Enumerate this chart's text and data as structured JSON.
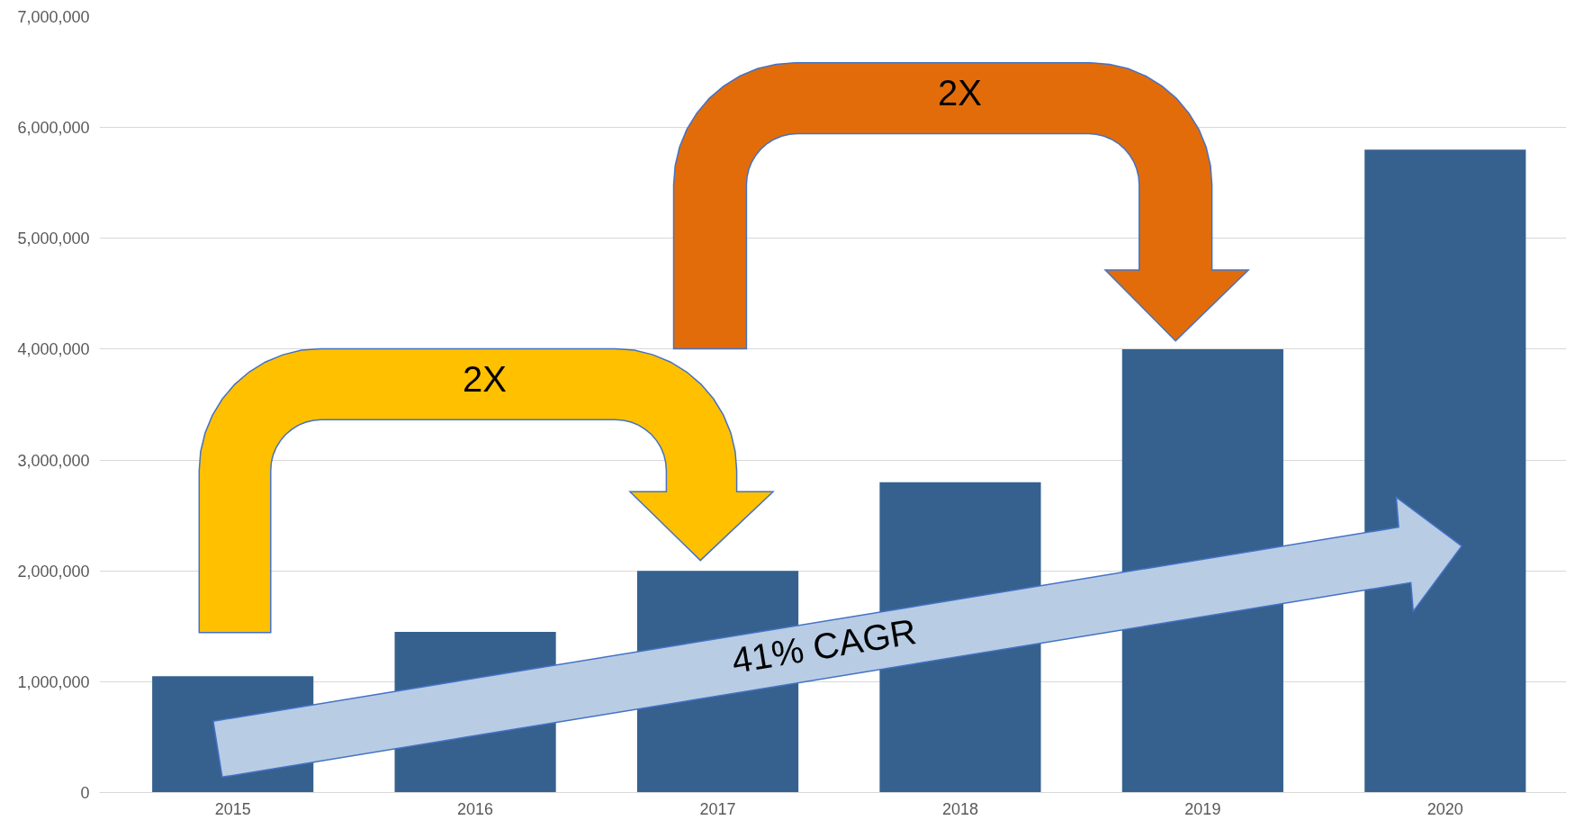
{
  "chart_data": {
    "type": "bar",
    "categories": [
      "2015",
      "2016",
      "2017",
      "2018",
      "2019",
      "2020"
    ],
    "values": [
      1050000,
      1450000,
      2000000,
      2800000,
      4000000,
      5800000
    ],
    "color": "#36618f",
    "ylim": [
      0,
      7000000
    ],
    "yticks": [
      {
        "value": 0,
        "label": "0"
      },
      {
        "value": 1000000,
        "label": "1,000,000"
      },
      {
        "value": 2000000,
        "label": "2,000,000"
      },
      {
        "value": 3000000,
        "label": "3,000,000"
      },
      {
        "value": 4000000,
        "label": "4,000,000"
      },
      {
        "value": 5000000,
        "label": "5,000,000"
      },
      {
        "value": 6000000,
        "label": "6,000,000"
      },
      {
        "value": 7000000,
        "label": "7,000,000"
      }
    ],
    "grid": "y",
    "annotations": [
      "2X",
      "2X",
      "41% CAGR"
    ]
  }
}
